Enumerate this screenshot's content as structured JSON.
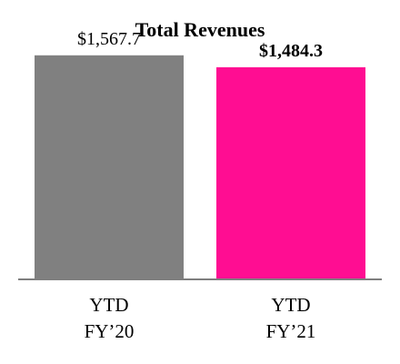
{
  "chart_data": {
    "type": "bar",
    "title": "Total Revenues",
    "categories": [
      [
        "YTD",
        "FY’20"
      ],
      [
        "YTD",
        "FY’21"
      ]
    ],
    "values": [
      1567.7,
      1484.3
    ],
    "data_labels": [
      "$1,567.7",
      "$1,484.3"
    ],
    "data_label_bold": [
      false,
      true
    ],
    "colors": [
      "#808080",
      "#ff0d92"
    ],
    "axis_color": "#7f7f7f",
    "ylim": [
      0,
      1700
    ],
    "grid": false,
    "legend": "none"
  }
}
